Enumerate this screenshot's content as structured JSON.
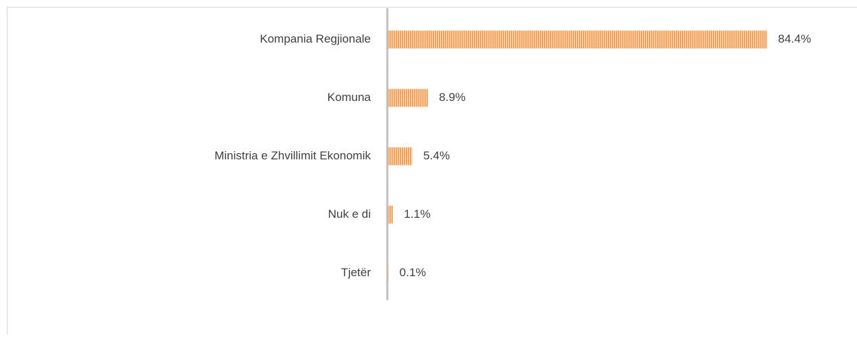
{
  "chart_data": {
    "type": "bar",
    "orientation": "horizontal",
    "categories": [
      "Kompania Regjionale",
      "Komuna",
      "Ministria e Zhvillimit Ekonomik",
      "Nuk e di",
      "Tjetër"
    ],
    "values": [
      84.4,
      8.9,
      5.4,
      1.1,
      0.1
    ],
    "value_labels": [
      "84.4%",
      "8.9%",
      "5.4%",
      "1.1%",
      "0.1%"
    ],
    "color": "#f0a05a"
  }
}
